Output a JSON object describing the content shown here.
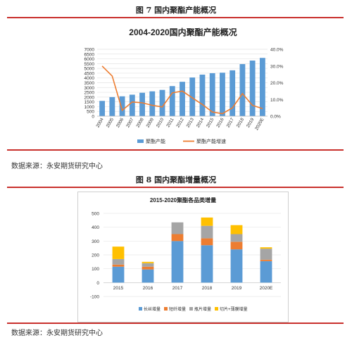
{
  "fig7": {
    "caption": "图 7 国内聚酯产能概况",
    "source": "数据来源：永安期货研究中心"
  },
  "fig8": {
    "caption": "图 8 国内聚酯增量概况",
    "source": "数据来源：永安期货研究中心"
  },
  "colors": {
    "rule": "#c9302c",
    "bar_blue": "#5b9bd5",
    "line_orange": "#ed7d31",
    "gray": "#a5a5a5",
    "yellow": "#ffc000"
  },
  "chart_data": [
    {
      "type": "bar",
      "title": "2004-2020国内聚酯产能概况",
      "categories": [
        "2004",
        "2005",
        "2006",
        "2007",
        "2008",
        "2009",
        "2010",
        "2011",
        "2012",
        "2013",
        "2014",
        "2015",
        "2016",
        "2017",
        "2018",
        "2019",
        "2020E"
      ],
      "y_ticks": [
        "0",
        "500",
        "1000",
        "1500",
        "2000",
        "2500",
        "3000",
        "3500",
        "4000",
        "4500",
        "5000",
        "5500",
        "6000",
        "6500",
        "7000"
      ],
      "y2_ticks": [
        "0.0%",
        "10.0%",
        "20.0%",
        "30.0%",
        "40.0%"
      ],
      "ylim": [
        0,
        7000
      ],
      "y2lim": [
        0,
        40
      ],
      "series": [
        {
          "name": "聚酯产能",
          "type": "bar",
          "color": "#5b9bd5",
          "values": [
            1600,
            2000,
            2080,
            2250,
            2450,
            2600,
            2750,
            3150,
            3600,
            4050,
            4350,
            4500,
            4550,
            4800,
            5450,
            5820,
            6100
          ]
        },
        {
          "name": "聚酯产能增速",
          "type": "line",
          "axis": "right",
          "color": "#ed7d31",
          "values": [
            30,
            24,
            3.5,
            8.5,
            8,
            6.5,
            5.5,
            14,
            15,
            11,
            7,
            2.5,
            1.5,
            5,
            13.5,
            6.5,
            4.5
          ]
        }
      ],
      "legend": "bottom"
    },
    {
      "type": "bar",
      "stacked": true,
      "title": "2015-2020聚酯各品类增量",
      "categories": [
        "2015",
        "2016",
        "2017",
        "2018",
        "2019",
        "2020E"
      ],
      "y_ticks": [
        "-100",
        "0",
        "100",
        "200",
        "300",
        "400",
        "500"
      ],
      "ylim": [
        -100,
        500
      ],
      "series": [
        {
          "name": "长丝增量",
          "color": "#5b9bd5",
          "values": [
            115,
            95,
            300,
            270,
            240,
            155
          ]
        },
        {
          "name": "短纤增量",
          "color": "#ed7d31",
          "values": [
            15,
            20,
            50,
            50,
            55,
            10
          ]
        },
        {
          "name": "瓶片增量",
          "color": "#a5a5a5",
          "values": [
            40,
            25,
            85,
            90,
            55,
            80
          ]
        },
        {
          "name": "切片+薄膜增量",
          "color": "#ffc000",
          "values": [
            90,
            10,
            0,
            60,
            65,
            10
          ]
        }
      ],
      "legend": "bottom"
    }
  ]
}
